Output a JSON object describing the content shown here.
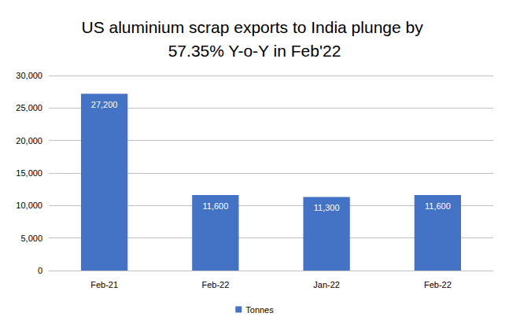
{
  "chart_data": {
    "type": "bar",
    "title": "US aluminium scrap exports to India plunge by 57.35% Y-o-Y in Feb'22",
    "categories": [
      "Feb-21",
      "Feb-22",
      "Jan-22",
      "Feb-22"
    ],
    "series": [
      {
        "name": "Tonnes",
        "color": "#4472c4",
        "values": [
          27200,
          11600,
          11300,
          11600
        ],
        "value_labels": [
          "27,200",
          "11,600",
          "11,300",
          "11,600"
        ]
      }
    ],
    "ylim": [
      0,
      30000
    ],
    "yticks": [
      {
        "value": 0,
        "label": "0"
      },
      {
        "value": 5000,
        "label": "5,000"
      },
      {
        "value": 10000,
        "label": "10,000"
      },
      {
        "value": 15000,
        "label": "15,000"
      },
      {
        "value": 20000,
        "label": "20,000"
      },
      {
        "value": 25000,
        "label": "25,000"
      },
      {
        "value": 30000,
        "label": "30,000"
      }
    ],
    "grid": true,
    "legend": "bottom",
    "data_labels": true
  }
}
